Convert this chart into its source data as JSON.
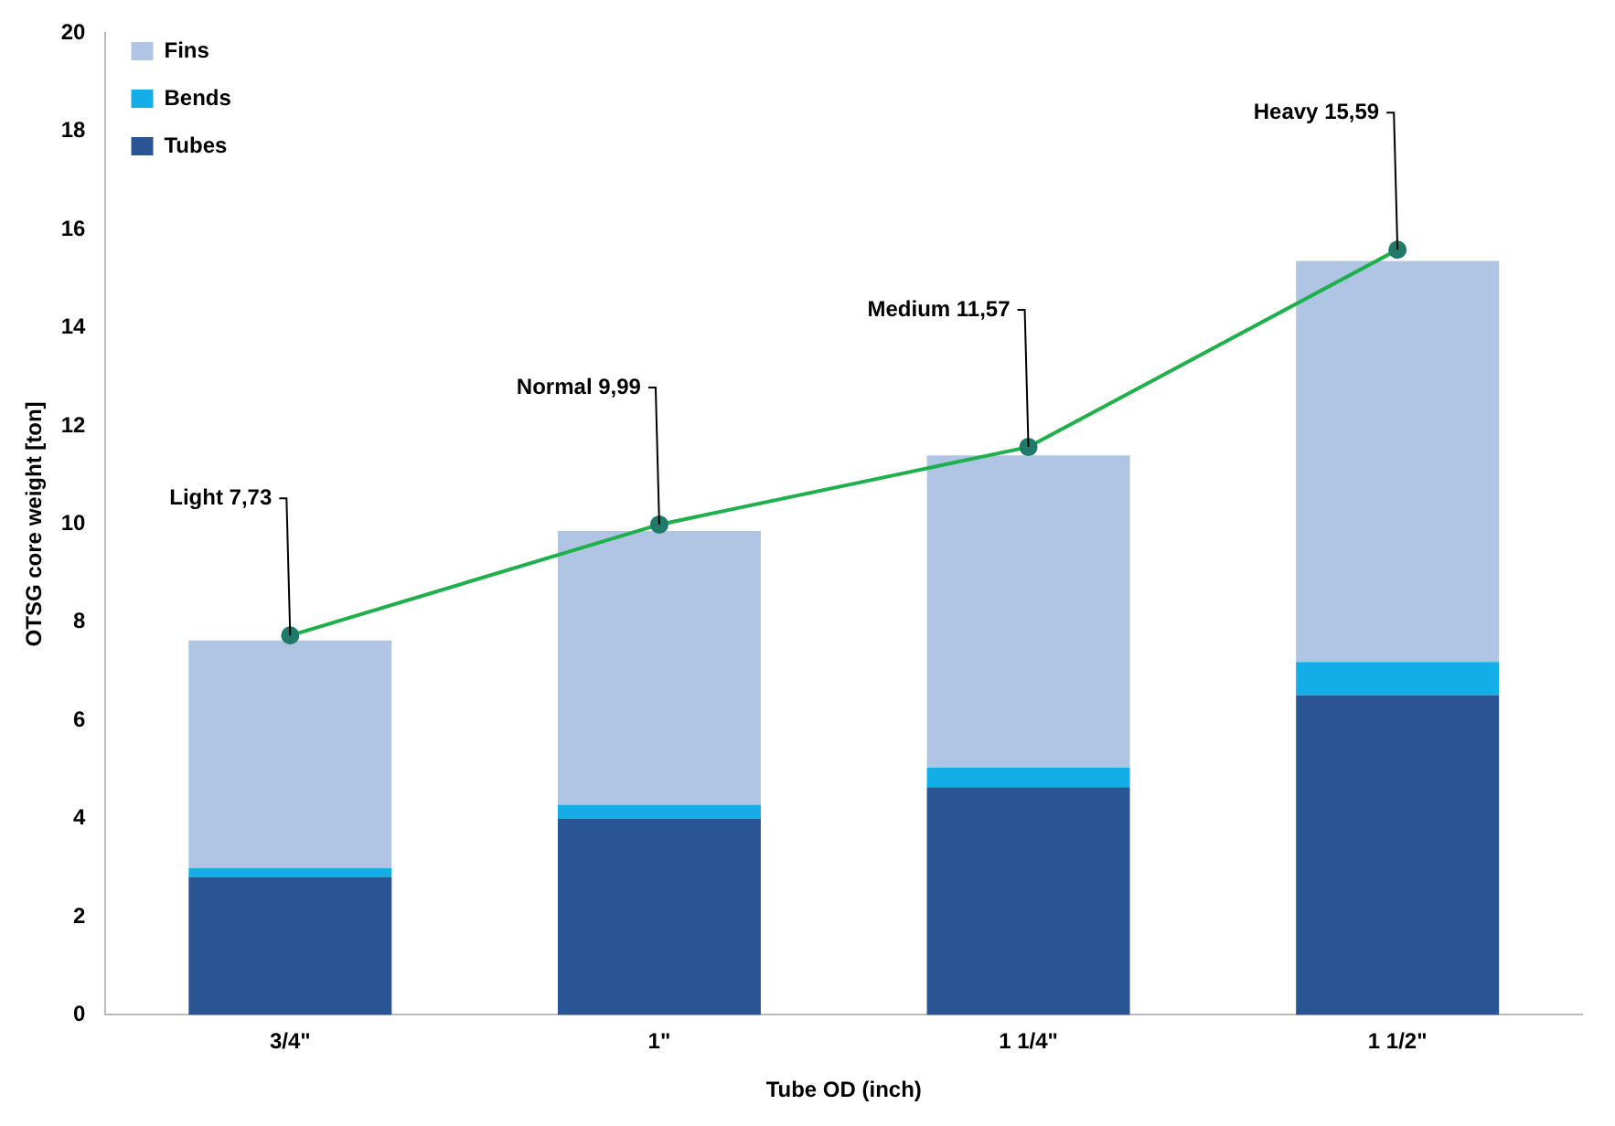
{
  "chart_data": {
    "type": "bar",
    "stacked": true,
    "xlabel": "Tube OD (inch)",
    "ylabel": "OTSG core weight [ton]",
    "categories": [
      "3/4\"",
      "1\"",
      "1 1/4\"",
      "1 1/2\""
    ],
    "series": [
      {
        "name": "Tubes",
        "color": "#2a5594",
        "values": [
          2.81,
          4.0,
          4.64,
          6.51
        ]
      },
      {
        "name": "Bends",
        "color": "#13aee8",
        "values": [
          0.18,
          0.28,
          0.4,
          0.68
        ]
      },
      {
        "name": "Fins",
        "color": "#b0c4e4",
        "values": [
          4.64,
          5.58,
          6.36,
          8.17
        ]
      },
      {
        "type": "line",
        "color": "#1db04b",
        "marker": "circle",
        "values": [
          7.73,
          9.99,
          11.57,
          15.59
        ]
      }
    ],
    "ylim": [
      0,
      20
    ],
    "yticks": [
      0,
      2,
      4,
      6,
      8,
      10,
      12,
      14,
      16,
      18,
      20
    ],
    "grid": false,
    "legend": "top left",
    "annotations": [
      {
        "text": "Light 7,73",
        "x": "3/4\"",
        "y": 7.73
      },
      {
        "text": "Normal 9,99",
        "x": "1\"",
        "y": 9.99
      },
      {
        "text": "Medium 11,57",
        "x": "1 1/4\"",
        "y": 11.57
      },
      {
        "text": "Heavy 15,59",
        "x": "1 1/2\"",
        "y": 15.59
      }
    ]
  }
}
